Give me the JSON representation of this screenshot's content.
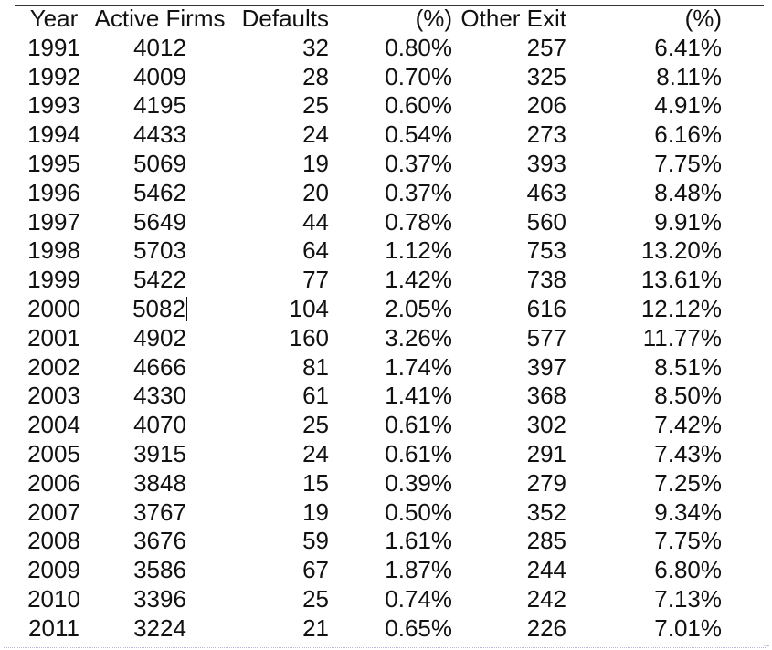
{
  "table": {
    "headers": [
      "Year",
      "Active Firms",
      "Defaults",
      "(%)",
      "Other Exit",
      "(%)"
    ],
    "rows": [
      [
        "1991",
        "4012",
        "32",
        "0.80%",
        "257",
        "6.41%"
      ],
      [
        "1992",
        "4009",
        "28",
        "0.70%",
        "325",
        "8.11%"
      ],
      [
        "1993",
        "4195",
        "25",
        "0.60%",
        "206",
        "4.91%"
      ],
      [
        "1994",
        "4433",
        "24",
        "0.54%",
        "273",
        "6.16%"
      ],
      [
        "1995",
        "5069",
        "19",
        "0.37%",
        "393",
        "7.75%"
      ],
      [
        "1996",
        "5462",
        "20",
        "0.37%",
        "463",
        "8.48%"
      ],
      [
        "1997",
        "5649",
        "44",
        "0.78%",
        "560",
        "9.91%"
      ],
      [
        "1998",
        "5703",
        "64",
        "1.12%",
        "753",
        "13.20%"
      ],
      [
        "1999",
        "5422",
        "77",
        "1.42%",
        "738",
        "13.61%"
      ],
      [
        "2000",
        "5082",
        "104",
        "2.05%",
        "616",
        "12.12%"
      ],
      [
        "2001",
        "4902",
        "160",
        "3.26%",
        "577",
        "11.77%"
      ],
      [
        "2002",
        "4666",
        "81",
        "1.74%",
        "397",
        "8.51%"
      ],
      [
        "2003",
        "4330",
        "61",
        "1.41%",
        "368",
        "8.50%"
      ],
      [
        "2004",
        "4070",
        "25",
        "0.61%",
        "302",
        "7.42%"
      ],
      [
        "2005",
        "3915",
        "24",
        "0.61%",
        "291",
        "7.43%"
      ],
      [
        "2006",
        "3848",
        "15",
        "0.39%",
        "279",
        "7.25%"
      ],
      [
        "2007",
        "3767",
        "19",
        "0.50%",
        "352",
        "9.34%"
      ],
      [
        "2008",
        "3676",
        "59",
        "1.61%",
        "285",
        "7.75%"
      ],
      [
        "2009",
        "3586",
        "67",
        "1.87%",
        "244",
        "6.80%"
      ],
      [
        "2010",
        "3396",
        "25",
        "0.74%",
        "242",
        "7.13%"
      ],
      [
        "2011",
        "3224",
        "21",
        "0.65%",
        "226",
        "7.01%"
      ]
    ]
  }
}
